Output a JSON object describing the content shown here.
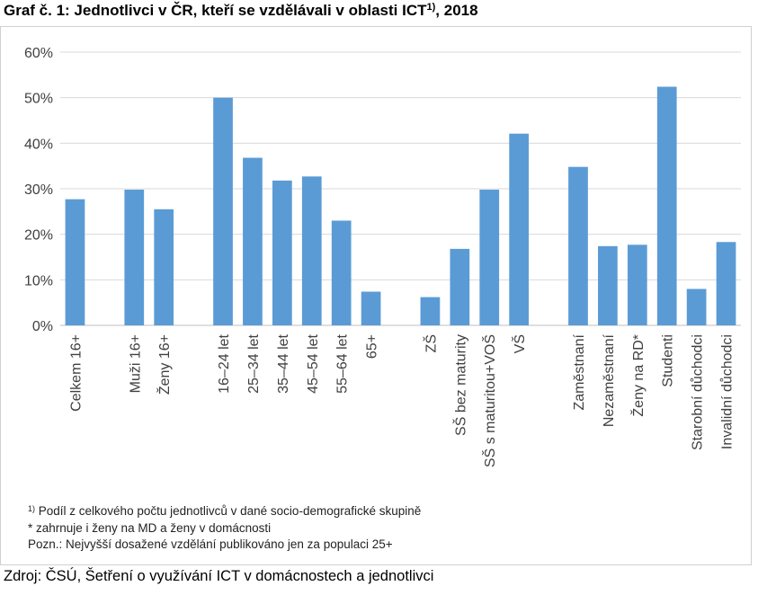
{
  "title": {
    "text": "Graf č. 1: Jednotlivci v ČR, kteří se vzdělávali v oblasti ICT",
    "superscript": "1)",
    "suffix": ", 2018"
  },
  "chart_data": {
    "type": "bar",
    "title": "",
    "xlabel": "",
    "ylabel": "",
    "ylim": [
      0,
      0.6
    ],
    "yticks": [
      "0%",
      "10%",
      "20%",
      "30%",
      "40%",
      "50%",
      "60%"
    ],
    "grid": true,
    "legend": "none",
    "bar_color": "#5b9bd5",
    "grid_color": "#d9d9d9",
    "categories": [
      "Celkem 16+",
      "",
      "Muži 16+",
      "Ženy 16+",
      "",
      "16–24 let",
      "25–34 let",
      "35–44 let",
      "45–54 let",
      "55–64 let",
      "65+",
      "",
      "ZŠ",
      "SŠ bez maturity",
      "SŠ s maturitou+VOŠ",
      "VŠ",
      "",
      "Zaměstnaní",
      "Nezaměstnaní",
      "Ženy na RD*",
      "Studenti",
      "Starobní důchodci",
      "Invalidní důchodci"
    ],
    "values": [
      0.277,
      null,
      0.298,
      0.255,
      null,
      0.5,
      0.368,
      0.318,
      0.327,
      0.23,
      0.074,
      null,
      0.062,
      0.168,
      0.298,
      0.421,
      null,
      0.348,
      0.174,
      0.177,
      0.524,
      0.08,
      0.183
    ]
  },
  "notes": {
    "footnote_mark": "1)",
    "footnote_text": " Podíl  z celkového počtu jednotlivců v dané socio-demografické skupině",
    "asterisk_note": "* zahrnuje i ženy na MD a ženy v domácnosti",
    "pozn": "Pozn.: Nejvyšší dosažené vzdělání publikováno jen  za populaci 25+"
  },
  "source": "Zdroj: ČSÚ, Šetření o využívání ICT v domácnostech a jednotlivci"
}
